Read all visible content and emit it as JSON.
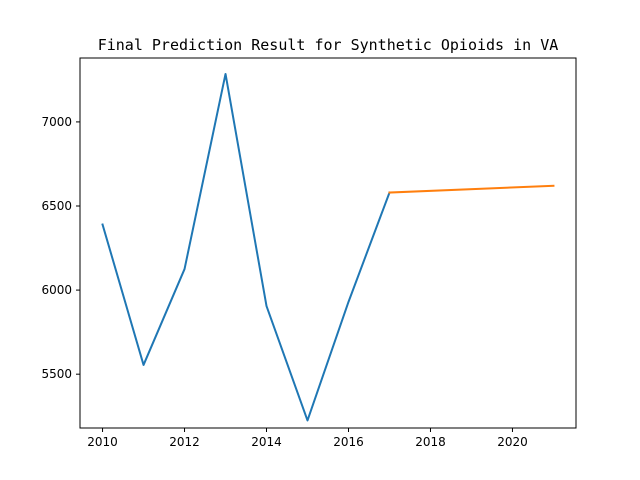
{
  "chart_data": {
    "type": "line",
    "title": "Final Prediction Result for Synthetic Opioids in VA",
    "xlabel": "",
    "ylabel": "",
    "xlim": [
      2009.45,
      2021.55
    ],
    "ylim": [
      5180,
      7380
    ],
    "x_ticks": [
      2010,
      2012,
      2014,
      2016,
      2018,
      2020
    ],
    "y_ticks": [
      5500,
      6000,
      6500,
      7000
    ],
    "grid": false,
    "legend": "none",
    "series": [
      {
        "color": "#1f77b4",
        "x": [
          2010,
          2011,
          2012,
          2013,
          2014,
          2015,
          2016,
          2017
        ],
        "y": [
          6390,
          5555,
          6125,
          7285,
          5905,
          5225,
          5930,
          6580
        ]
      },
      {
        "color": "#ff7f0e",
        "x": [
          2017,
          2021
        ],
        "y": [
          6580,
          6620
        ]
      }
    ]
  }
}
